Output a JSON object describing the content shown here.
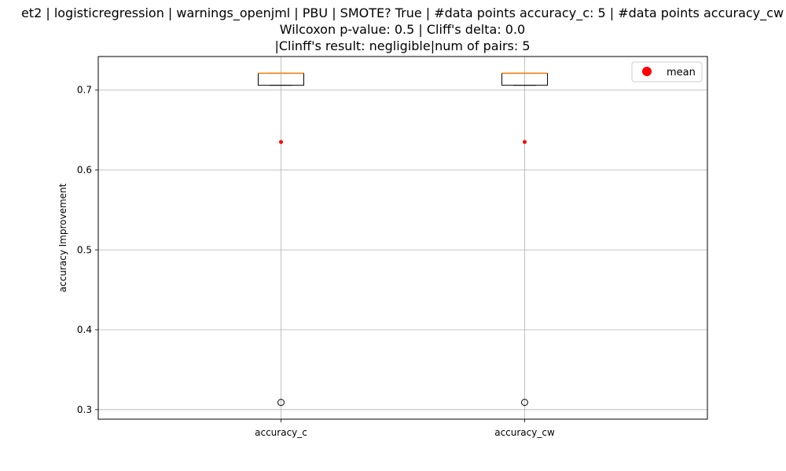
{
  "chart_data": {
    "type": "box",
    "title_lines": [
      "et2 | logisticregression | warnings_openjml | PBU | SMOTE? True | #data points accuracy_c: 5 | #data points accuracy_cw",
      "Wilcoxon p-value: 0.5 | Cliff's delta: 0.0",
      "|Clinff's result: negligible|num of pairs: 5"
    ],
    "ylabel": "accuracy Improvement",
    "xlabel": "",
    "categories": [
      "accuracy_c",
      "accuracy_cw"
    ],
    "ylim": [
      0.288,
      0.742
    ],
    "yticks": [
      0.3,
      0.4,
      0.5,
      0.6,
      0.7
    ],
    "ytick_labels": [
      "0.3",
      "0.4",
      "0.5",
      "0.6",
      "0.7"
    ],
    "grid": true,
    "legend": {
      "position": "top-right",
      "entries": [
        {
          "label": "mean",
          "color": "#ff0000"
        }
      ]
    },
    "boxes": [
      {
        "category": "accuracy_c",
        "q1": 0.706,
        "median": 0.721,
        "q3": 0.721,
        "whisker_low": 0.706,
        "whisker_high": 0.721,
        "outliers": [
          0.309
        ],
        "mean": 0.635
      },
      {
        "category": "accuracy_cw",
        "q1": 0.706,
        "median": 0.721,
        "q3": 0.721,
        "whisker_low": 0.706,
        "whisker_high": 0.721,
        "outliers": [
          0.309
        ],
        "mean": 0.635
      }
    ],
    "colors": {
      "box": "#000000",
      "median": "#ff7f0e",
      "mean": "#ff0000",
      "grid": "#b0b0b0"
    }
  }
}
